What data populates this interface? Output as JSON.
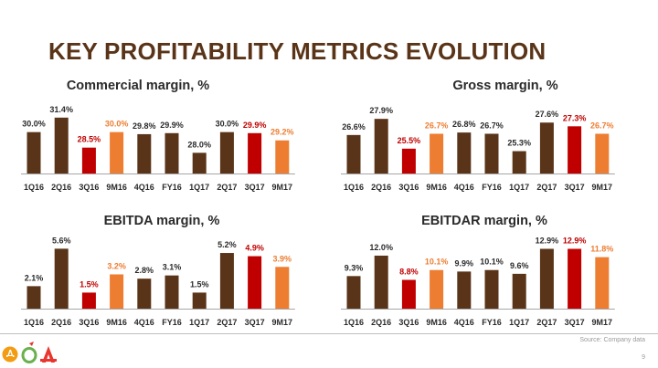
{
  "slide": {
    "title": "KEY PROFITABILITY METRICS EVOLUTION",
    "source": "Source: Company data",
    "page_number": "9"
  },
  "colors": {
    "title": "#5a3418",
    "brown": "#5a3418",
    "red": "#c00000",
    "orange": "#ed7d31",
    "brand_orange": "#f39c12",
    "brand_red": "#e8352e",
    "brand_green": "#6ab04c"
  },
  "logos": [
    "d-store-logo",
    "o-store-logo",
    "a-store-logo"
  ],
  "chart_data": [
    {
      "type": "bar",
      "title": "Commercial margin, %",
      "categories": [
        "1Q16",
        "2Q16",
        "3Q16",
        "9M16",
        "4Q16",
        "FY16",
        "1Q17",
        "2Q17",
        "3Q17",
        "9M17"
      ],
      "values": [
        30.0,
        31.4,
        28.5,
        30.0,
        29.8,
        29.9,
        28.0,
        30.0,
        29.9,
        29.2
      ],
      "labels": [
        "30.0%",
        "31.4%",
        "28.5%",
        "30.0%",
        "29.8%",
        "29.9%",
        "28.0%",
        "30.0%",
        "29.9%",
        "29.2%"
      ],
      "colors": [
        "brown",
        "brown",
        "red",
        "orange",
        "brown",
        "brown",
        "brown",
        "brown",
        "red",
        "orange"
      ],
      "ylim": [
        26,
        32
      ]
    },
    {
      "type": "bar",
      "title": "Gross margin, %",
      "categories": [
        "1Q16",
        "2Q16",
        "3Q16",
        "9M16",
        "4Q16",
        "FY16",
        "1Q17",
        "2Q17",
        "3Q17",
        "9M17"
      ],
      "values": [
        26.6,
        27.9,
        25.5,
        26.7,
        26.8,
        26.7,
        25.3,
        27.6,
        27.3,
        26.7
      ],
      "labels": [
        "26.6%",
        "27.9%",
        "25.5%",
        "26.7%",
        "26.8%",
        "26.7%",
        "25.3%",
        "27.6%",
        "27.3%",
        "26.7%"
      ],
      "colors": [
        "brown",
        "brown",
        "red",
        "orange",
        "brown",
        "brown",
        "brown",
        "brown",
        "red",
        "orange"
      ],
      "ylim": [
        23.5,
        28.5
      ]
    },
    {
      "type": "bar",
      "title": "EBITDA margin, %",
      "categories": [
        "1Q16",
        "2Q16",
        "3Q16",
        "9M16",
        "4Q16",
        "FY16",
        "1Q17",
        "2Q17",
        "3Q17",
        "9M17"
      ],
      "values": [
        2.1,
        5.6,
        1.5,
        3.2,
        2.8,
        3.1,
        1.5,
        5.2,
        4.9,
        3.9
      ],
      "labels": [
        "2.1%",
        "5.6%",
        "1.5%",
        "3.2%",
        "2.8%",
        "3.1%",
        "1.5%",
        "5.2%",
        "4.9%",
        "3.9%"
      ],
      "colors": [
        "brown",
        "brown",
        "red",
        "orange",
        "brown",
        "brown",
        "brown",
        "brown",
        "red",
        "orange"
      ],
      "ylim": [
        0,
        5.8
      ]
    },
    {
      "type": "bar",
      "title": "EBITDAR margin, %",
      "categories": [
        "1Q16",
        "2Q16",
        "3Q16",
        "9M16",
        "4Q16",
        "FY16",
        "1Q17",
        "2Q17",
        "3Q17",
        "9M17"
      ],
      "values": [
        9.3,
        12.0,
        8.8,
        10.1,
        9.9,
        10.1,
        9.6,
        12.9,
        12.9,
        11.8
      ],
      "labels": [
        "9.3%",
        "12.0%",
        "8.8%",
        "10.1%",
        "9.9%",
        "10.1%",
        "9.6%",
        "12.9%",
        "12.9%",
        "11.8%"
      ],
      "colors": [
        "brown",
        "brown",
        "red",
        "orange",
        "brown",
        "brown",
        "brown",
        "brown",
        "red",
        "orange"
      ],
      "ylim": [
        5,
        13.2
      ]
    }
  ]
}
